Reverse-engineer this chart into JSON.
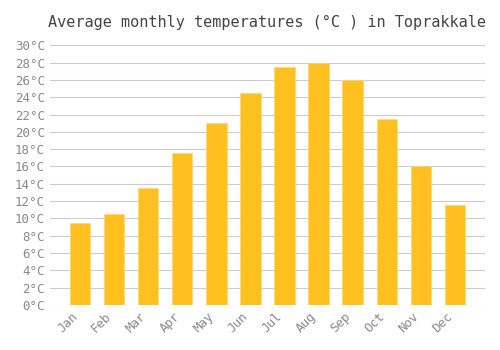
{
  "title": "Average monthly temperatures (°C ) in Toprakkale",
  "months": [
    "Jan",
    "Feb",
    "Mar",
    "Apr",
    "May",
    "Jun",
    "Jul",
    "Aug",
    "Sep",
    "Oct",
    "Nov",
    "Dec"
  ],
  "values": [
    9.5,
    10.5,
    13.5,
    17.5,
    21.0,
    24.5,
    27.5,
    28.0,
    26.0,
    21.5,
    16.0,
    11.5
  ],
  "bar_color_top": "#FFC020",
  "bar_color_bottom": "#FFD870",
  "background_color": "#FFFFFF",
  "grid_color": "#CCCCCC",
  "text_color": "#888888",
  "ylim": [
    0,
    30
  ],
  "ytick_step": 2,
  "title_fontsize": 11,
  "tick_fontsize": 9
}
